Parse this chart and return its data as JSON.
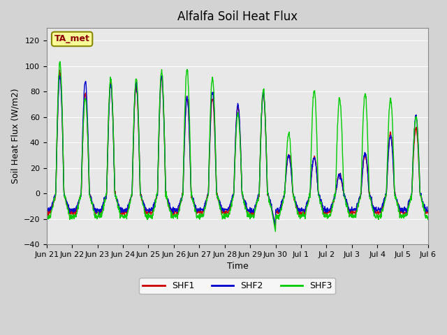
{
  "title": "Alfalfa Soil Heat Flux",
  "ylabel": "Soil Heat Flux (W/m2)",
  "xlabel": "Time",
  "ylim": [
    -40,
    130
  ],
  "yticks": [
    -40,
    -20,
    0,
    20,
    40,
    60,
    80,
    100,
    120
  ],
  "fig_bg_color": "#d3d3d3",
  "plot_bg_color": "#e8e8e8",
  "shf1_color": "#cc0000",
  "shf2_color": "#0000cc",
  "shf3_color": "#00cc00",
  "legend_labels": [
    "SHF1",
    "SHF2",
    "SHF3"
  ],
  "annotation_text": "TA_met",
  "annotation_bg": "#ffff99",
  "annotation_border": "#888800",
  "x_tick_labels": [
    "Jun 21",
    "Jun 22",
    "Jun 23",
    "Jun 24",
    "Jun 25",
    "Jun 26",
    "Jun 27",
    "Jun 28",
    "Jun 29",
    "Jun 30",
    "Jul 1",
    "Jul 2",
    "Jul 3",
    "Jul 4",
    "Jul 5",
    "Jul 6"
  ],
  "x_tick_positions": [
    0,
    1,
    2,
    3,
    4,
    5,
    6,
    7,
    8,
    9,
    10,
    11,
    12,
    13,
    14,
    15
  ],
  "xlim": [
    0,
    15
  ],
  "n_days": 15,
  "n_points_per_day": 96
}
